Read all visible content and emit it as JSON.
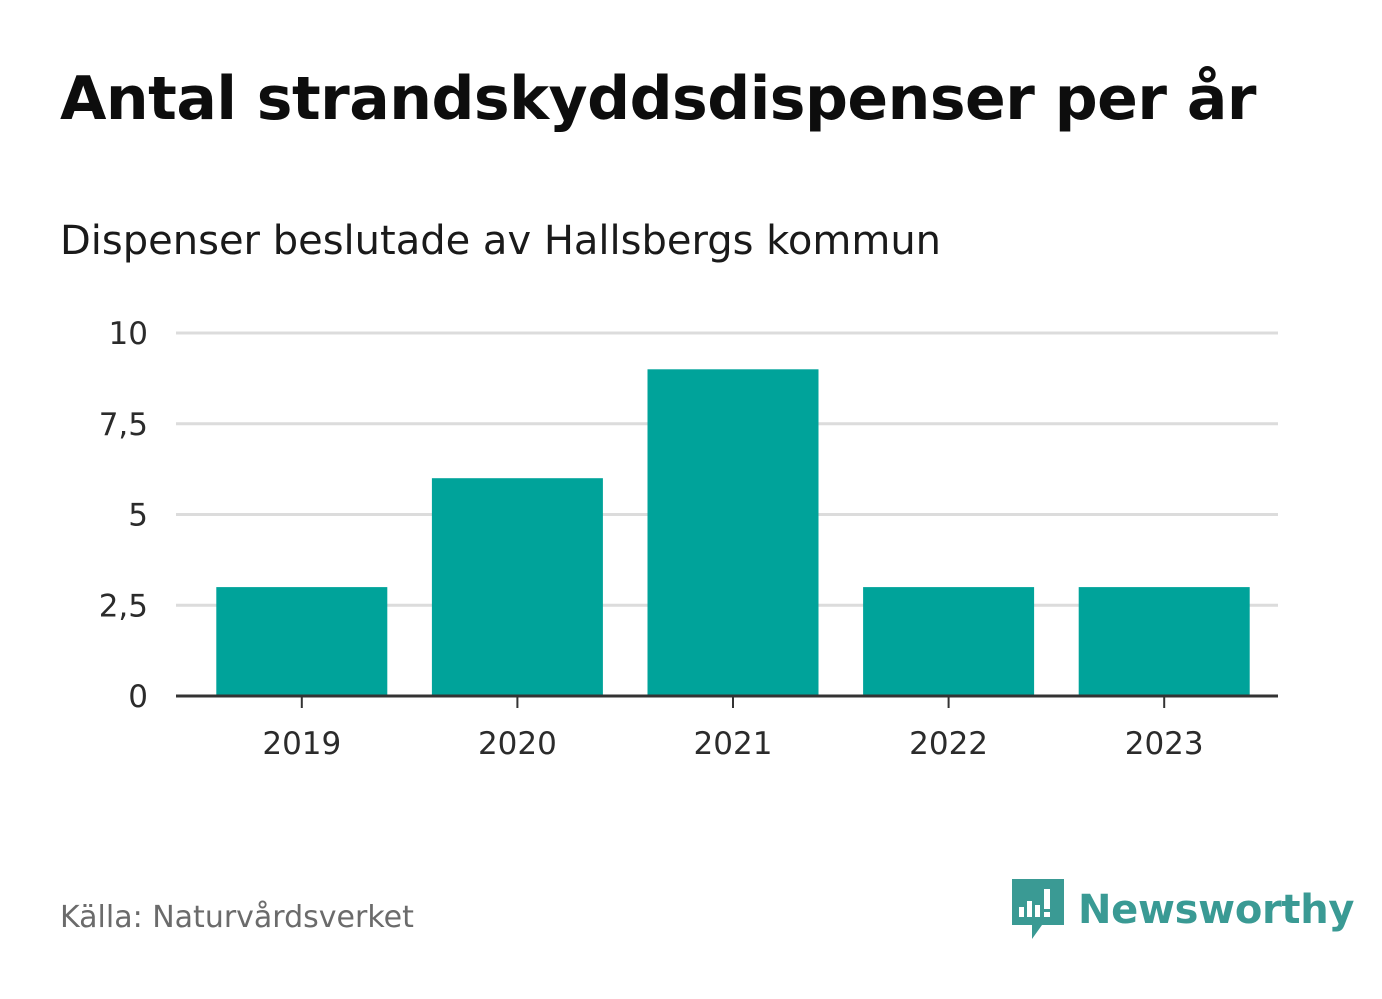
{
  "title": "Antal strandskyddsdispenser per år",
  "subtitle": "Dispenser beslutade av Hallsbergs kommun",
  "source": "Källa: Naturvårdsverket",
  "brand": {
    "name": "Newsworthy",
    "logo_icon": "newsworthy-logo-icon",
    "color": "#3a9a94"
  },
  "colors": {
    "bar": "#00a39a",
    "grid": "#dcdcdc",
    "axis": "#333333",
    "tick_text": "#2b2b2b"
  },
  "chart_data": {
    "type": "bar",
    "title": "Antal strandskyddsdispenser per år",
    "subtitle": "Dispenser beslutade av Hallsbergs kommun",
    "xlabel": "",
    "ylabel": "",
    "categories": [
      "2019",
      "2020",
      "2021",
      "2022",
      "2023"
    ],
    "values": [
      3,
      6,
      9,
      3,
      3
    ],
    "ylim": [
      0,
      10
    ],
    "yticks": [
      0,
      2.5,
      5,
      7.5,
      10
    ],
    "ytick_labels": [
      "0",
      "2,5",
      "5",
      "7,5",
      "10"
    ],
    "grid": true,
    "legend": "none"
  }
}
